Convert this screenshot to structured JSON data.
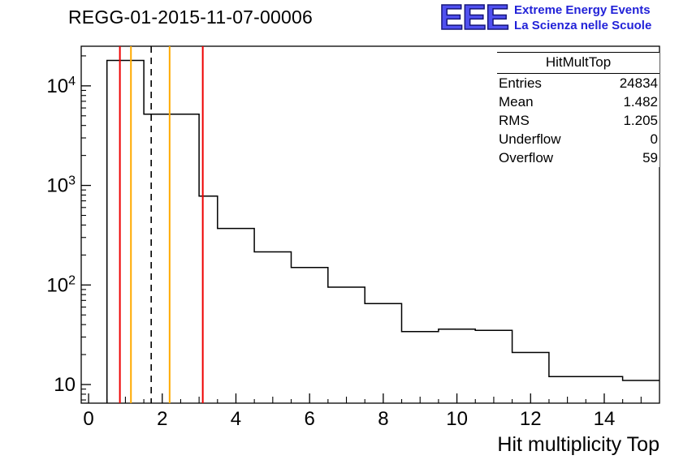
{
  "logo": {
    "acronym": "EEE",
    "line1": "Extreme Energy Events",
    "line2": "La Scienza nelle Scuole",
    "color": "#2222d8"
  },
  "stats": {
    "title": "HitMultTop",
    "rows": [
      {
        "label": "Entries",
        "value": "24834"
      },
      {
        "label": "Mean",
        "value": "1.482"
      },
      {
        "label": "RMS",
        "value": "1.205"
      },
      {
        "label": "Underflow",
        "value": "0"
      },
      {
        "label": "Overflow",
        "value": "59"
      }
    ]
  },
  "chart_data": {
    "type": "bar",
    "subtype": "step-histogram",
    "title": "REGG-01-2015-11-07-00006",
    "xlabel": "Hit multiplicity Top",
    "ylabel": "",
    "y_scale": "log",
    "x_range": [
      -0.2,
      15.5
    ],
    "y_range": [
      6.5,
      25000
    ],
    "x_major_ticks": [
      0,
      2,
      4,
      6,
      8,
      10,
      12,
      14
    ],
    "y_decade_exponents": [
      1,
      2,
      3,
      4
    ],
    "grid": false,
    "legend": "none",
    "line_color": "#000000",
    "bin_edges": [
      0.5,
      1.5,
      3.0,
      3.5,
      4.5,
      5.5,
      6.5,
      7.5,
      8.5,
      9.5,
      10.5,
      11.5,
      12.5,
      14.5,
      15.5
    ],
    "counts": [
      18000,
      5200,
      780,
      370,
      215,
      150,
      95,
      65,
      34,
      36,
      35,
      21,
      12,
      11
    ],
    "marker_lines": [
      {
        "x": 0.85,
        "color": "#ee0000",
        "style": "solid"
      },
      {
        "x": 1.15,
        "color": "#ffaa00",
        "style": "solid"
      },
      {
        "x": 1.7,
        "color": "#000000",
        "style": "dashed"
      },
      {
        "x": 2.2,
        "color": "#ffaa00",
        "style": "solid"
      },
      {
        "x": 3.1,
        "color": "#ee0000",
        "style": "solid"
      }
    ]
  }
}
